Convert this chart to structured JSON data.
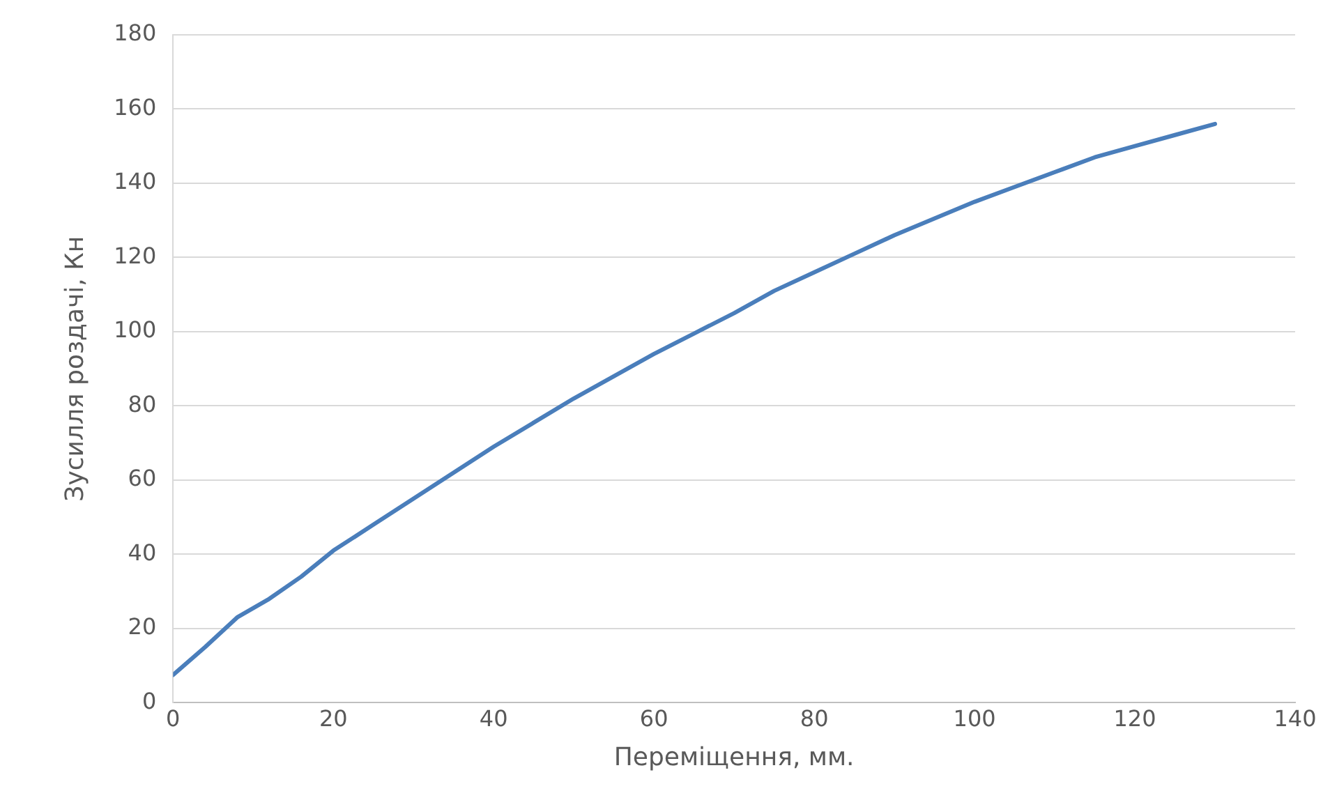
{
  "chart_data": {
    "type": "line",
    "xlabel": "Переміщення, мм.",
    "ylabel": "Зусилля роздачі, Кн",
    "x": [
      0,
      4,
      8,
      12,
      16,
      20,
      25,
      30,
      35,
      40,
      45,
      50,
      55,
      60,
      65,
      70,
      75,
      80,
      85,
      90,
      95,
      100,
      105,
      110,
      115,
      120,
      125,
      130
    ],
    "series": [
      {
        "color": "#4a7ebb",
        "values": [
          7.5,
          15,
          23,
          28,
          34,
          41,
          48,
          55,
          62,
          69,
          75.5,
          82,
          88,
          94,
          99.5,
          105,
          111,
          116,
          121,
          126,
          130.5,
          135,
          139,
          143,
          147,
          150,
          153,
          156
        ]
      }
    ],
    "xlim": [
      0,
      140
    ],
    "xticks": [
      0,
      20,
      40,
      60,
      80,
      100,
      120,
      140
    ],
    "ylim": [
      0,
      180
    ],
    "yticks": [
      0,
      20,
      40,
      60,
      80,
      100,
      120,
      140,
      160,
      180
    ],
    "grid": "y",
    "legend": false,
    "marker": "none",
    "line_style": "solid"
  }
}
